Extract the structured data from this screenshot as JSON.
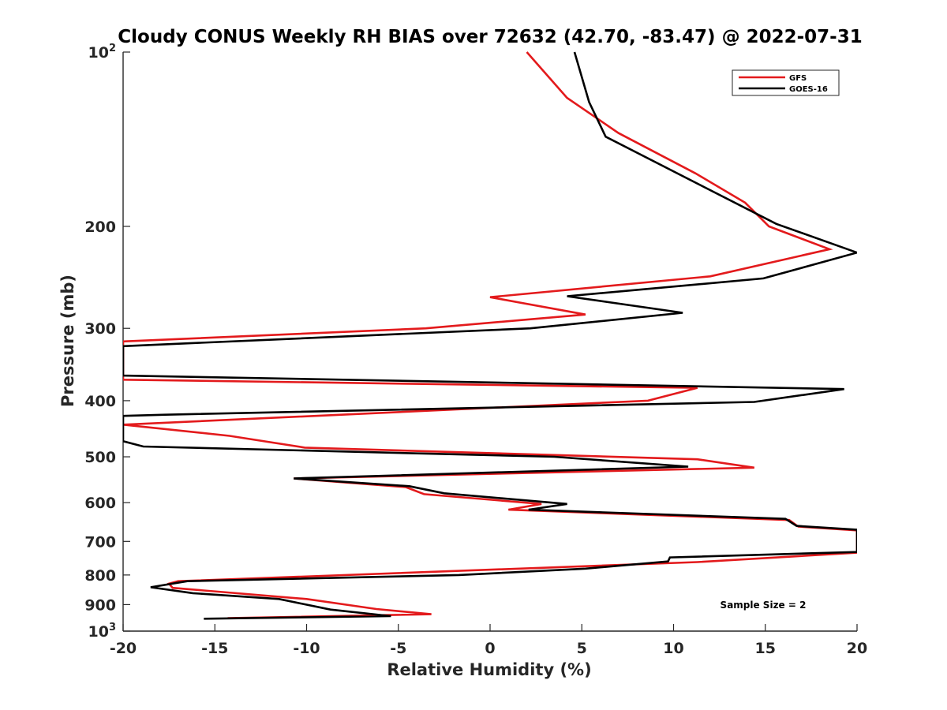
{
  "chart_data": {
    "type": "line",
    "title": "Cloudy CONUS Weekly RH BIAS over 72632 (42.70, -83.47) @ 2022-07-31",
    "xlabel": "Relative Humidity (%)",
    "ylabel": "Pressure (mb)",
    "xlim": [
      -20,
      20
    ],
    "ylim": [
      100,
      1000
    ],
    "y_scale": "log",
    "y_reversed": true,
    "grid": false,
    "legend_position": "top-right",
    "x_ticks": [
      "-20",
      "-15",
      "-10",
      "-5",
      "0",
      "5",
      "10",
      "15",
      "20"
    ],
    "y_ticks": [
      {
        "value": 100,
        "label": "10",
        "sup": "2"
      },
      {
        "value": 200,
        "label": "200",
        "sup": ""
      },
      {
        "value": 300,
        "label": "300",
        "sup": ""
      },
      {
        "value": 400,
        "label": "400",
        "sup": ""
      },
      {
        "value": 500,
        "label": "500",
        "sup": ""
      },
      {
        "value": 600,
        "label": "600",
        "sup": ""
      },
      {
        "value": 700,
        "label": "700",
        "sup": ""
      },
      {
        "value": 800,
        "label": "800",
        "sup": ""
      },
      {
        "value": 900,
        "label": "900",
        "sup": ""
      },
      {
        "value": 1000,
        "label": "10",
        "sup": "3"
      }
    ],
    "annotation": "Sample Size = 2",
    "series": [
      {
        "name": "GFS",
        "color": "#e31a1c",
        "points": [
          [
            2.0,
            100
          ],
          [
            4.2,
            120
          ],
          [
            7.0,
            138
          ],
          [
            11.2,
            162
          ],
          [
            13.9,
            182
          ],
          [
            15.2,
            200
          ],
          [
            18.5,
            219
          ],
          [
            12.0,
            244
          ],
          [
            0.0,
            265
          ],
          [
            5.2,
            284
          ],
          [
            -3.5,
            300
          ],
          [
            -20.0,
            316
          ],
          [
            -20.0,
            368
          ],
          [
            11.3,
            380
          ],
          [
            8.6,
            400
          ],
          [
            -20.0,
            440
          ],
          [
            -14.2,
            460
          ],
          [
            -10.1,
            482
          ],
          [
            11.3,
            505
          ],
          [
            14.4,
            522
          ],
          [
            -10.7,
            545
          ],
          [
            -4.6,
            564
          ],
          [
            -3.6,
            580
          ],
          [
            2.8,
            603
          ],
          [
            1.0,
            617
          ],
          [
            16.3,
            643
          ],
          [
            16.8,
            660
          ],
          [
            20.0,
            670
          ],
          [
            20.0,
            732
          ],
          [
            11.3,
            760
          ],
          [
            -17.0,
            820
          ],
          [
            -17.5,
            828
          ],
          [
            -17.3,
            842
          ],
          [
            -10.0,
            880
          ],
          [
            -6.2,
            916
          ],
          [
            -3.2,
            935
          ],
          [
            -14.3,
            950
          ]
        ]
      },
      {
        "name": "GOES-16",
        "color": "#000000",
        "points": [
          [
            4.6,
            100
          ],
          [
            5.4,
            122
          ],
          [
            6.3,
            140
          ],
          [
            15.6,
            198
          ],
          [
            20.0,
            222
          ],
          [
            14.9,
            246
          ],
          [
            4.2,
            264
          ],
          [
            10.5,
            282
          ],
          [
            2.2,
            300
          ],
          [
            -20.0,
            322
          ],
          [
            -20.0,
            362
          ],
          [
            19.3,
            382
          ],
          [
            14.4,
            402
          ],
          [
            -17.7,
            423
          ],
          [
            -20.0,
            425
          ],
          [
            -20.0,
            470
          ],
          [
            -18.9,
            480
          ],
          [
            3.5,
            500
          ],
          [
            10.8,
            520
          ],
          [
            -10.7,
            545
          ],
          [
            -4.4,
            562
          ],
          [
            -2.5,
            578
          ],
          [
            4.2,
            603
          ],
          [
            2.1,
            617
          ],
          [
            16.1,
            640
          ],
          [
            16.7,
            658
          ],
          [
            20.0,
            668
          ],
          [
            20.0,
            730
          ],
          [
            9.8,
            746
          ],
          [
            9.7,
            758
          ],
          [
            5.2,
            780
          ],
          [
            -1.7,
            800
          ],
          [
            -16.5,
            820
          ],
          [
            -18.5,
            840
          ],
          [
            -16.2,
            860
          ],
          [
            -11.5,
            880
          ],
          [
            -8.7,
            918
          ],
          [
            -5.4,
            942
          ],
          [
            -15.6,
            952
          ]
        ]
      }
    ]
  }
}
